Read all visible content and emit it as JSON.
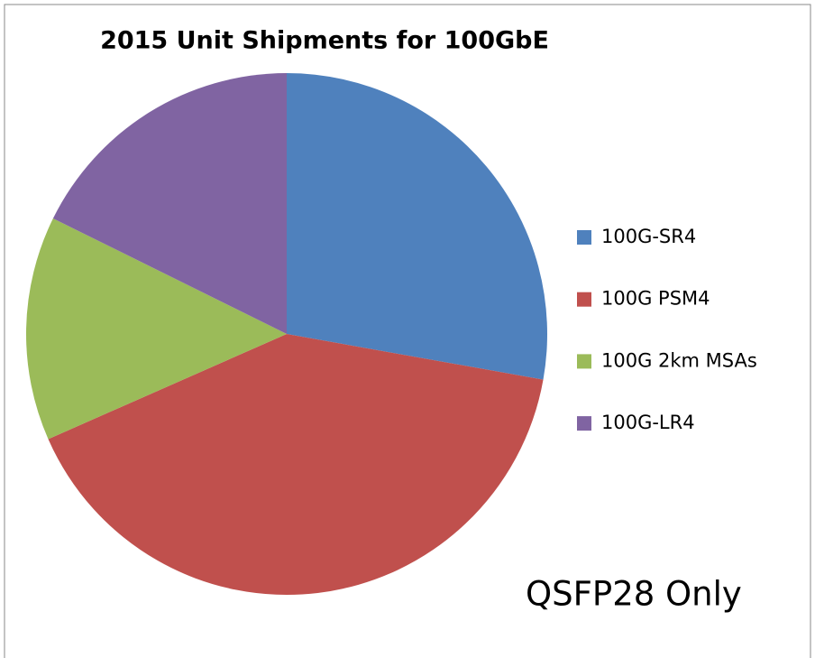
{
  "chart_data": {
    "type": "pie",
    "title": "2015 Unit Shipments for 100GbE",
    "categories": [
      "100G-SR4",
      "100G PSM4",
      "100G 2km MSAs",
      "100G-LR4"
    ],
    "values": [
      27.8,
      40.6,
      13.9,
      17.7
    ],
    "colors": [
      "#4f81bd",
      "#c0504d",
      "#9bbb59",
      "#8064a2"
    ],
    "legend": "right",
    "annotation": "QSFP28 Only"
  }
}
